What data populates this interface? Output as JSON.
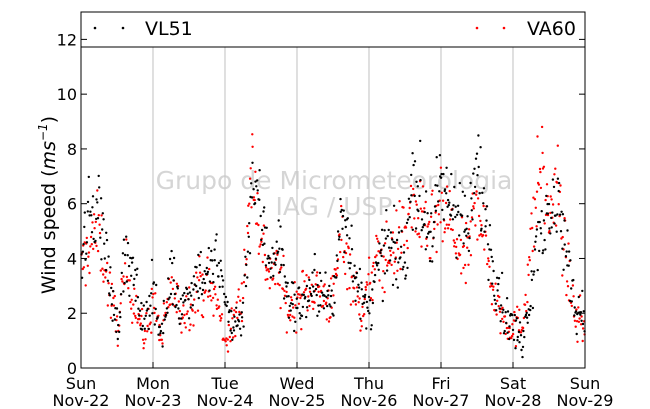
{
  "chart_data": {
    "type": "scatter",
    "title": "",
    "xlabel": "",
    "ylabel": "Wind speed",
    "ylabel_unit": "ms",
    "ylabel_unit_exp": "−1",
    "ylim": [
      0,
      13
    ],
    "yticks": [
      0,
      2,
      4,
      6,
      8,
      10,
      12
    ],
    "xlim_days": [
      0,
      7
    ],
    "xticks": [
      {
        "day": "Sun",
        "date": "Nov-22"
      },
      {
        "day": "Mon",
        "date": "Nov-23"
      },
      {
        "day": "Tue",
        "date": "Nov-24"
      },
      {
        "day": "Wed",
        "date": "Nov-25"
      },
      {
        "day": "Thu",
        "date": "Nov-26"
      },
      {
        "day": "Fri",
        "date": "Nov-27"
      },
      {
        "day": "Sat",
        "date": "Nov-28"
      },
      {
        "day": "Sun",
        "date": "Nov-29"
      }
    ],
    "grid": "vertical",
    "legend_placement": "top",
    "watermark": [
      "Grupo de Micrometeorologia",
      "IAG / USP"
    ],
    "series": [
      {
        "name": "VL51",
        "color": "#000000",
        "trend": [
          [
            0.0,
            4.0
          ],
          [
            0.12,
            5.5
          ],
          [
            0.25,
            6.0
          ],
          [
            0.38,
            3.5
          ],
          [
            0.5,
            1.5
          ],
          [
            0.62,
            4.2
          ],
          [
            0.75,
            3.0
          ],
          [
            0.88,
            1.5
          ],
          [
            1.0,
            3.2
          ],
          [
            1.12,
            1.0
          ],
          [
            1.25,
            3.5
          ],
          [
            1.38,
            2.2
          ],
          [
            1.5,
            2.8
          ],
          [
            1.62,
            3.5
          ],
          [
            1.75,
            3.3
          ],
          [
            1.88,
            4.0
          ],
          [
            2.0,
            2.5
          ],
          [
            2.12,
            1.5
          ],
          [
            2.25,
            2.0
          ],
          [
            2.38,
            7.0
          ],
          [
            2.5,
            5.5
          ],
          [
            2.62,
            4.0
          ],
          [
            2.75,
            4.5
          ],
          [
            2.88,
            2.5
          ],
          [
            3.0,
            2.2
          ],
          [
            3.12,
            2.5
          ],
          [
            3.25,
            3.0
          ],
          [
            3.38,
            2.7
          ],
          [
            3.5,
            2.2
          ],
          [
            3.62,
            6.0
          ],
          [
            3.75,
            4.5
          ],
          [
            3.88,
            2.5
          ],
          [
            4.0,
            2.0
          ],
          [
            4.12,
            3.5
          ],
          [
            4.25,
            4.5
          ],
          [
            4.38,
            4.0
          ],
          [
            4.5,
            4.0
          ],
          [
            4.62,
            7.5
          ],
          [
            4.75,
            5.5
          ],
          [
            4.88,
            5.0
          ],
          [
            5.0,
            6.5
          ],
          [
            5.12,
            6.0
          ],
          [
            5.25,
            6.0
          ],
          [
            5.38,
            4.5
          ],
          [
            5.5,
            7.5
          ],
          [
            5.62,
            5.5
          ],
          [
            5.75,
            3.5
          ],
          [
            5.88,
            2.0
          ],
          [
            6.0,
            1.5
          ],
          [
            6.12,
            1.0
          ],
          [
            6.25,
            3.0
          ],
          [
            6.38,
            5.5
          ],
          [
            6.5,
            5.0
          ],
          [
            6.62,
            6.5
          ],
          [
            6.75,
            4.0
          ],
          [
            6.88,
            2.0
          ],
          [
            7.0,
            2.0
          ]
        ]
      },
      {
        "name": "VA60",
        "color": "#ff0000",
        "trend": [
          [
            0.0,
            3.5
          ],
          [
            0.12,
            4.5
          ],
          [
            0.25,
            5.0
          ],
          [
            0.38,
            3.0
          ],
          [
            0.5,
            1.5
          ],
          [
            0.62,
            3.5
          ],
          [
            0.75,
            2.5
          ],
          [
            0.88,
            1.0
          ],
          [
            1.0,
            2.5
          ],
          [
            1.12,
            1.0
          ],
          [
            1.25,
            3.0
          ],
          [
            1.38,
            2.0
          ],
          [
            1.5,
            2.3
          ],
          [
            1.62,
            3.0
          ],
          [
            1.75,
            3.0
          ],
          [
            1.88,
            2.5
          ],
          [
            2.0,
            1.0
          ],
          [
            2.12,
            1.5
          ],
          [
            2.25,
            3.0
          ],
          [
            2.38,
            7.5
          ],
          [
            2.5,
            4.5
          ],
          [
            2.62,
            3.5
          ],
          [
            2.75,
            3.5
          ],
          [
            2.88,
            2.0
          ],
          [
            3.0,
            2.5
          ],
          [
            3.12,
            2.8
          ],
          [
            3.25,
            3.0
          ],
          [
            3.38,
            2.5
          ],
          [
            3.5,
            2.5
          ],
          [
            3.62,
            5.0
          ],
          [
            3.75,
            3.5
          ],
          [
            3.88,
            2.0
          ],
          [
            4.0,
            3.0
          ],
          [
            4.12,
            4.0
          ],
          [
            4.25,
            4.0
          ],
          [
            4.38,
            4.5
          ],
          [
            4.5,
            5.0
          ],
          [
            4.62,
            6.0
          ],
          [
            4.75,
            5.0
          ],
          [
            4.88,
            5.0
          ],
          [
            5.0,
            5.5
          ],
          [
            5.12,
            5.5
          ],
          [
            5.25,
            4.0
          ],
          [
            5.38,
            4.0
          ],
          [
            5.5,
            6.5
          ],
          [
            5.62,
            4.5
          ],
          [
            5.75,
            2.5
          ],
          [
            5.88,
            1.8
          ],
          [
            6.0,
            1.5
          ],
          [
            6.12,
            1.5
          ],
          [
            6.25,
            4.5
          ],
          [
            6.38,
            7.5
          ],
          [
            6.5,
            5.5
          ],
          [
            6.62,
            6.5
          ],
          [
            6.75,
            3.5
          ],
          [
            6.88,
            1.8
          ],
          [
            7.0,
            1.5
          ]
        ]
      }
    ]
  }
}
